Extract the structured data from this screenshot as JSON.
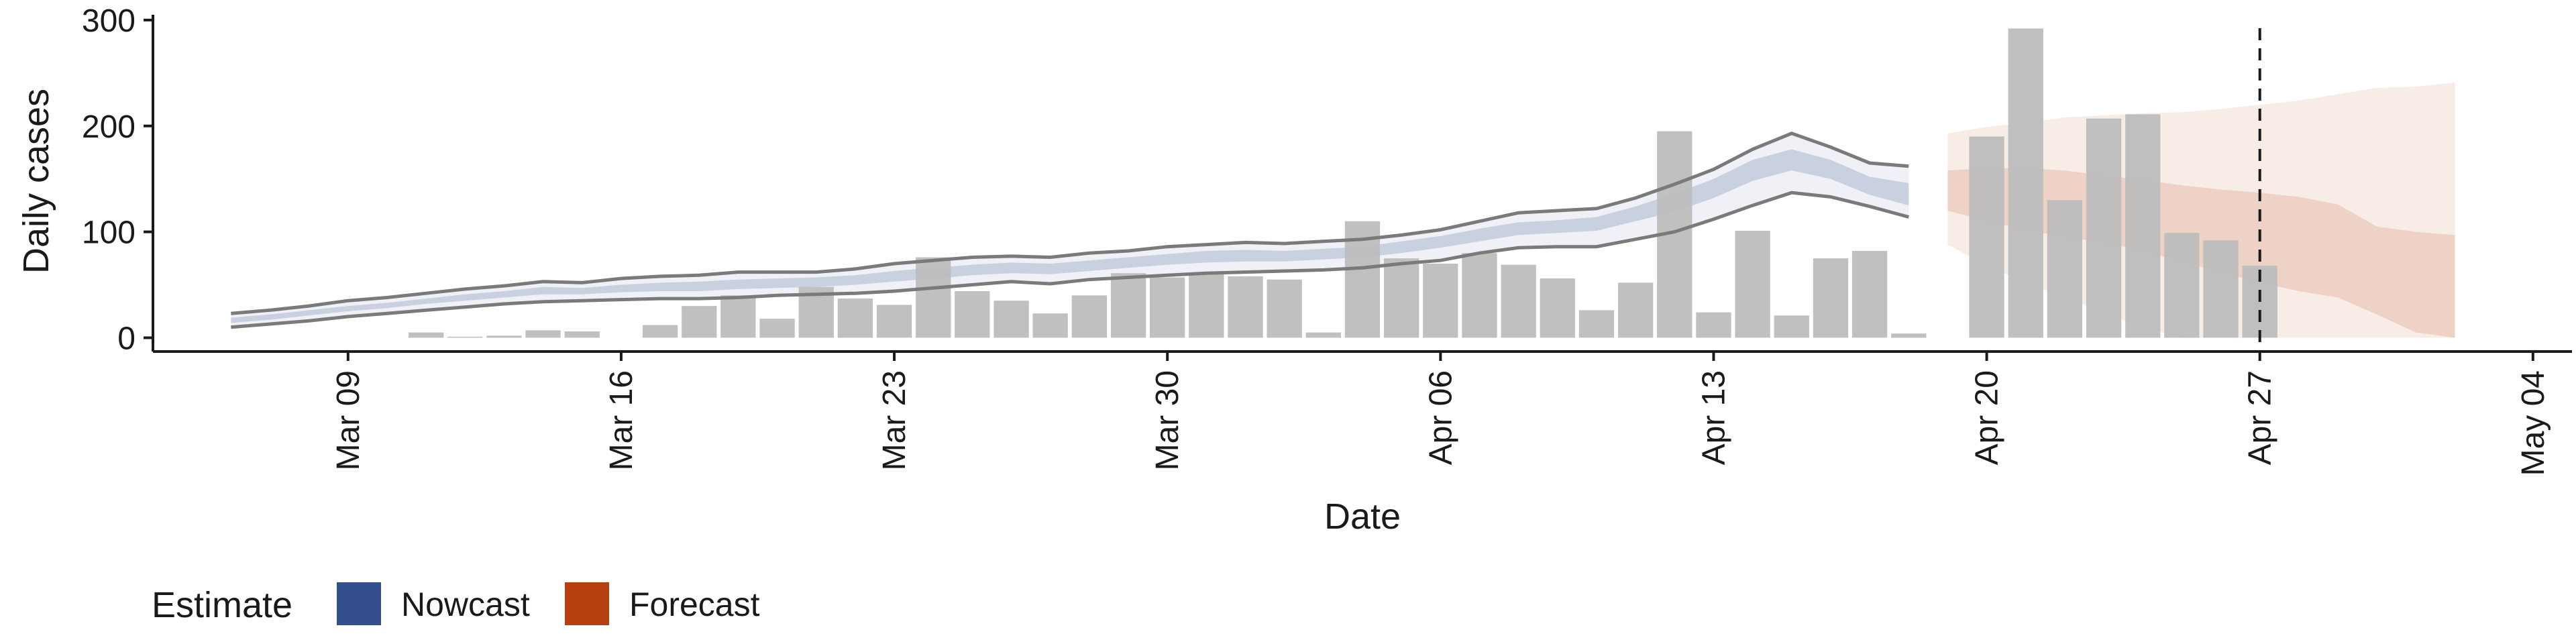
{
  "chart_data": {
    "type": "bar",
    "title": "",
    "xlabel": "Date",
    "ylabel": "Daily cases",
    "x_axis": {
      "type": "date",
      "domain": [
        "2020-03-04",
        "2020-05-05"
      ],
      "ticks": [
        {
          "date": "2020-03-09",
          "label": "Mar 09"
        },
        {
          "date": "2020-03-16",
          "label": "Mar 16"
        },
        {
          "date": "2020-03-23",
          "label": "Mar 23"
        },
        {
          "date": "2020-03-30",
          "label": "Mar 30"
        },
        {
          "date": "2020-04-06",
          "label": "Apr 06"
        },
        {
          "date": "2020-04-13",
          "label": "Apr 13"
        },
        {
          "date": "2020-04-20",
          "label": "Apr 20"
        },
        {
          "date": "2020-04-27",
          "label": "Apr 27"
        },
        {
          "date": "2020-05-04",
          "label": "May 04"
        }
      ]
    },
    "y_axis": {
      "ylim": [
        -13,
        305
      ],
      "ticks": [
        0,
        100,
        200,
        300
      ]
    },
    "grid": false,
    "reference_line": {
      "date": "2020-04-27",
      "style": "dashed"
    },
    "legend": {
      "title": "Estimate",
      "position": "bottom-left",
      "items": [
        {
          "label": "Nowcast",
          "color": "#34508c"
        },
        {
          "label": "Forecast",
          "color": "#b6400f"
        }
      ]
    },
    "colors": {
      "bars": "#bdbdbd",
      "nowcast": "#34508c",
      "forecast": "#b6400f",
      "nowcast_lines": "#7a7a7a",
      "axis": "#1a1a1a"
    },
    "observed": {
      "dates": [
        "2020-03-11",
        "2020-03-12",
        "2020-03-13",
        "2020-03-14",
        "2020-03-15",
        "2020-03-16",
        "2020-03-17",
        "2020-03-18",
        "2020-03-19",
        "2020-03-20",
        "2020-03-21",
        "2020-03-22",
        "2020-03-23",
        "2020-03-24",
        "2020-03-25",
        "2020-03-26",
        "2020-03-27",
        "2020-03-28",
        "2020-03-29",
        "2020-03-30",
        "2020-03-31",
        "2020-04-01",
        "2020-04-02",
        "2020-04-03",
        "2020-04-04",
        "2020-04-05",
        "2020-04-06",
        "2020-04-07",
        "2020-04-08",
        "2020-04-09",
        "2020-04-10",
        "2020-04-11",
        "2020-04-12",
        "2020-04-13",
        "2020-04-14",
        "2020-04-15",
        "2020-04-16",
        "2020-04-17",
        "2020-04-18",
        "2020-04-19",
        "2020-04-20",
        "2020-04-21",
        "2020-04-22",
        "2020-04-23",
        "2020-04-24",
        "2020-04-25",
        "2020-04-26",
        "2020-04-27"
      ],
      "cases": [
        5,
        1,
        2,
        7,
        6,
        0,
        12,
        30,
        40,
        18,
        48,
        37,
        31,
        76,
        44,
        35,
        23,
        40,
        61,
        57,
        61,
        58,
        55,
        5,
        110,
        75,
        70,
        80,
        69,
        56,
        26,
        52,
        195,
        24,
        101,
        21,
        75,
        82,
        4,
        0,
        190,
        292,
        130,
        207,
        211,
        99,
        92,
        68
      ]
    },
    "nowcast": {
      "dates": [
        "2020-03-06",
        "2020-03-07",
        "2020-03-08",
        "2020-03-09",
        "2020-03-10",
        "2020-03-11",
        "2020-03-12",
        "2020-03-13",
        "2020-03-14",
        "2020-03-15",
        "2020-03-16",
        "2020-03-17",
        "2020-03-18",
        "2020-03-19",
        "2020-03-20",
        "2020-03-21",
        "2020-03-22",
        "2020-03-23",
        "2020-03-24",
        "2020-03-25",
        "2020-03-26",
        "2020-03-27",
        "2020-03-28",
        "2020-03-29",
        "2020-03-30",
        "2020-03-31",
        "2020-04-01",
        "2020-04-02",
        "2020-04-03",
        "2020-04-04",
        "2020-04-05",
        "2020-04-06",
        "2020-04-07",
        "2020-04-08",
        "2020-04-09",
        "2020-04-10",
        "2020-04-11",
        "2020-04-12",
        "2020-04-13",
        "2020-04-14",
        "2020-04-15",
        "2020-04-16",
        "2020-04-17",
        "2020-04-18"
      ],
      "outer_low": [
        10,
        13,
        16,
        20,
        23,
        26,
        29,
        32,
        34,
        35,
        36,
        37,
        37,
        38,
        40,
        41,
        42,
        44,
        47,
        50,
        53,
        51,
        55,
        57,
        59,
        61,
        62,
        63,
        64,
        66,
        70,
        73,
        80,
        85,
        86,
        86,
        93,
        100,
        112,
        125,
        137,
        133,
        124,
        114
      ],
      "outer_high": [
        23,
        26,
        30,
        35,
        38,
        42,
        46,
        49,
        53,
        52,
        56,
        58,
        59,
        62,
        62,
        62,
        65,
        70,
        73,
        76,
        77,
        76,
        80,
        82,
        86,
        88,
        90,
        89,
        91,
        93,
        97,
        102,
        110,
        118,
        120,
        122,
        132,
        145,
        159,
        178,
        193,
        180,
        165,
        162
      ],
      "inner_low": [
        14,
        17,
        21,
        25,
        28,
        32,
        35,
        38,
        41,
        41,
        43,
        44,
        44,
        46,
        47,
        48,
        50,
        53,
        56,
        59,
        61,
        60,
        63,
        66,
        69,
        71,
        72,
        72,
        74,
        76,
        80,
        85,
        91,
        97,
        99,
        101,
        110,
        119,
        132,
        148,
        158,
        150,
        135,
        125
      ],
      "inner_high": [
        19,
        22,
        26,
        30,
        33,
        37,
        41,
        44,
        48,
        47,
        50,
        52,
        53,
        55,
        56,
        57,
        59,
        63,
        66,
        69,
        71,
        70,
        73,
        76,
        79,
        82,
        83,
        82,
        84,
        86,
        91,
        96,
        103,
        109,
        111,
        114,
        124,
        136,
        150,
        168,
        178,
        168,
        152,
        146
      ]
    },
    "forecast": {
      "dates": [
        "2020-04-19",
        "2020-04-20",
        "2020-04-21",
        "2020-04-22",
        "2020-04-23",
        "2020-04-24",
        "2020-04-25",
        "2020-04-26",
        "2020-04-27",
        "2020-04-28",
        "2020-04-29",
        "2020-04-30",
        "2020-05-01",
        "2020-05-02"
      ],
      "outer_low": [
        88,
        68,
        52,
        38,
        24,
        10,
        0,
        0,
        0,
        0,
        0,
        0,
        0,
        0
      ],
      "outer_high": [
        193,
        199,
        203,
        208,
        210,
        212,
        213,
        216,
        220,
        224,
        230,
        236,
        237,
        241
      ],
      "inner_low": [
        120,
        110,
        102,
        95,
        90,
        82,
        72,
        62,
        52,
        44,
        38,
        22,
        5,
        0
      ],
      "inner_high": [
        158,
        160,
        160,
        158,
        153,
        149,
        144,
        140,
        137,
        133,
        126,
        105,
        100,
        97
      ]
    }
  }
}
